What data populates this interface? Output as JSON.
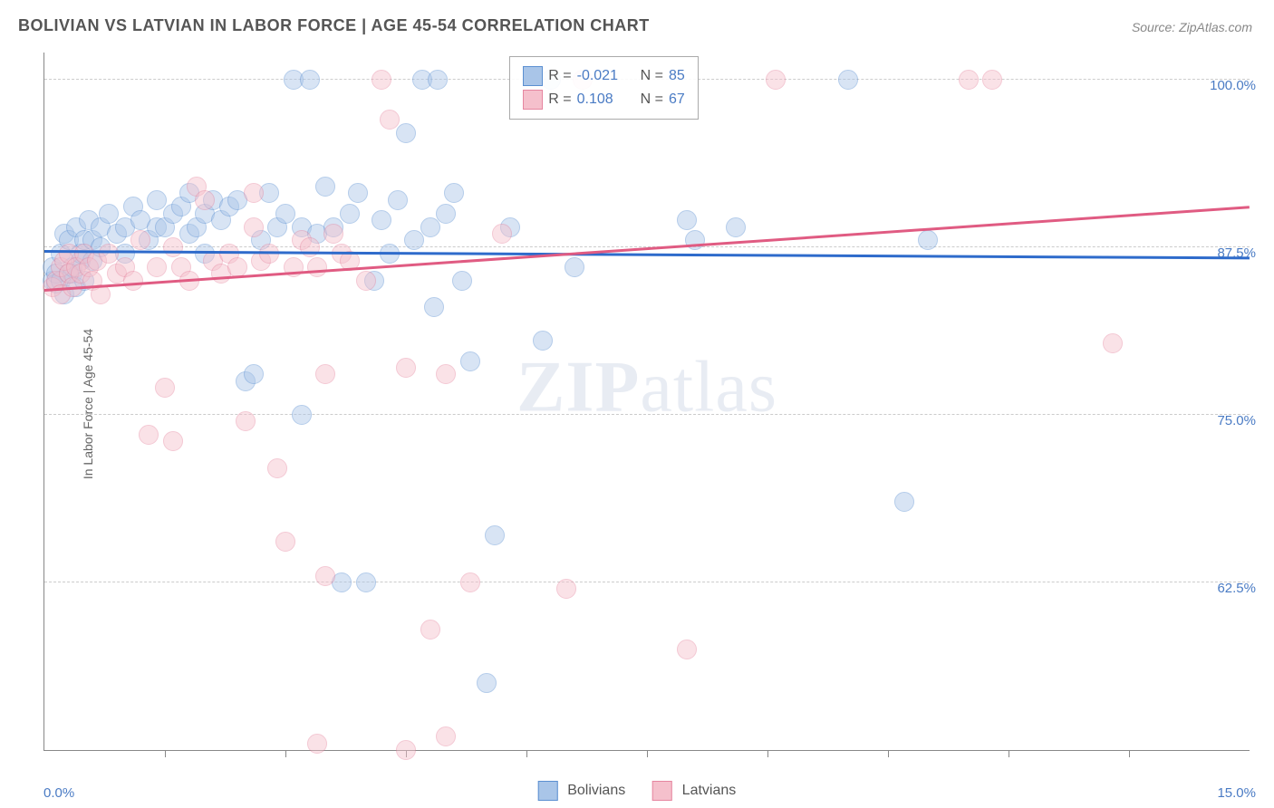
{
  "title": "BOLIVIAN VS LATVIAN IN LABOR FORCE | AGE 45-54 CORRELATION CHART",
  "source": "Source: ZipAtlas.com",
  "ylabel": "In Labor Force | Age 45-54",
  "watermark_zip": "ZIP",
  "watermark_atlas": "atlas",
  "chart": {
    "type": "scatter",
    "xlim": [
      0.0,
      15.0
    ],
    "ylim": [
      50.0,
      102.0
    ],
    "xlim_labels": [
      "0.0%",
      "15.0%"
    ],
    "y_gridlines": [
      62.5,
      75.0,
      87.5,
      100.0
    ],
    "y_grid_labels": [
      "62.5%",
      "75.0%",
      "87.5%",
      "100.0%"
    ],
    "x_ticks": [
      1.5,
      3.0,
      4.5,
      6.0,
      7.5,
      9.0,
      10.5,
      12.0,
      13.5
    ],
    "background_color": "#ffffff",
    "grid_color": "#cccccc",
    "axis_color": "#888888",
    "marker_radius": 10,
    "marker_opacity": 0.45,
    "series": [
      {
        "name": "Bolivians",
        "color_fill": "#a9c5e8",
        "color_stroke": "#5b8fd1",
        "R": "-0.021",
        "N": "85",
        "trend": {
          "x1": 0.0,
          "y1": 87.1,
          "x2": 15.0,
          "y2": 86.6,
          "color": "#2e6bcb",
          "width": 3
        },
        "points": [
          [
            0.1,
            85.0
          ],
          [
            0.1,
            86.0
          ],
          [
            0.15,
            84.8
          ],
          [
            0.15,
            85.5
          ],
          [
            0.2,
            85.0
          ],
          [
            0.2,
            87.0
          ],
          [
            0.25,
            88.5
          ],
          [
            0.25,
            84.0
          ],
          [
            0.3,
            85.5
          ],
          [
            0.3,
            88.0
          ],
          [
            0.35,
            85.5
          ],
          [
            0.35,
            86.0
          ],
          [
            0.4,
            84.5
          ],
          [
            0.4,
            89.0
          ],
          [
            0.45,
            86.5
          ],
          [
            0.45,
            87.0
          ],
          [
            0.5,
            85.0
          ],
          [
            0.5,
            88.0
          ],
          [
            0.55,
            89.5
          ],
          [
            0.6,
            88.0
          ],
          [
            0.6,
            86.5
          ],
          [
            0.7,
            87.5
          ],
          [
            0.7,
            89.0
          ],
          [
            0.8,
            90.0
          ],
          [
            0.9,
            88.5
          ],
          [
            1.0,
            89.0
          ],
          [
            1.0,
            87.0
          ],
          [
            1.1,
            90.5
          ],
          [
            1.2,
            89.5
          ],
          [
            1.3,
            88.0
          ],
          [
            1.4,
            89.0
          ],
          [
            1.4,
            91.0
          ],
          [
            1.5,
            89.0
          ],
          [
            1.6,
            90.0
          ],
          [
            1.7,
            90.5
          ],
          [
            1.8,
            88.5
          ],
          [
            1.8,
            91.5
          ],
          [
            1.9,
            89.0
          ],
          [
            2.0,
            90.0
          ],
          [
            2.0,
            87.0
          ],
          [
            2.1,
            91.0
          ],
          [
            2.2,
            89.5
          ],
          [
            2.3,
            90.5
          ],
          [
            2.4,
            91.0
          ],
          [
            2.5,
            77.5
          ],
          [
            2.6,
            78.0
          ],
          [
            2.7,
            88.0
          ],
          [
            2.8,
            91.5
          ],
          [
            2.9,
            89.0
          ],
          [
            3.0,
            90.0
          ],
          [
            3.1,
            100.0
          ],
          [
            3.2,
            89.0
          ],
          [
            3.2,
            75.0
          ],
          [
            3.3,
            100.0
          ],
          [
            3.4,
            88.5
          ],
          [
            3.5,
            92.0
          ],
          [
            3.6,
            89.0
          ],
          [
            3.7,
            62.5
          ],
          [
            3.8,
            90.0
          ],
          [
            3.9,
            91.5
          ],
          [
            4.0,
            62.5
          ],
          [
            4.1,
            85.0
          ],
          [
            4.2,
            89.5
          ],
          [
            4.3,
            87.0
          ],
          [
            4.4,
            91.0
          ],
          [
            4.5,
            96.0
          ],
          [
            4.6,
            88.0
          ],
          [
            4.7,
            100.0
          ],
          [
            4.8,
            89.0
          ],
          [
            4.85,
            83.0
          ],
          [
            4.9,
            100.0
          ],
          [
            5.0,
            90.0
          ],
          [
            5.1,
            91.5
          ],
          [
            5.2,
            85.0
          ],
          [
            5.3,
            79.0
          ],
          [
            5.5,
            55.0
          ],
          [
            5.6,
            66.0
          ],
          [
            5.8,
            89.0
          ],
          [
            6.2,
            80.5
          ],
          [
            6.3,
            100.0
          ],
          [
            6.6,
            86.0
          ],
          [
            8.0,
            89.5
          ],
          [
            8.1,
            88.0
          ],
          [
            8.6,
            89.0
          ],
          [
            10.0,
            100.0
          ],
          [
            10.7,
            68.5
          ],
          [
            11.0,
            88.0
          ]
        ]
      },
      {
        "name": "Latvians",
        "color_fill": "#f5c0cc",
        "color_stroke": "#e686a0",
        "R": "0.108",
        "N": "67",
        "trend": {
          "x1": 0.0,
          "y1": 84.2,
          "x2": 15.0,
          "y2": 90.4,
          "color": "#e05b82",
          "width": 3
        },
        "points": [
          [
            0.1,
            84.5
          ],
          [
            0.15,
            85.0
          ],
          [
            0.2,
            86.0
          ],
          [
            0.2,
            84.0
          ],
          [
            0.25,
            86.5
          ],
          [
            0.3,
            85.5
          ],
          [
            0.3,
            87.0
          ],
          [
            0.35,
            84.5
          ],
          [
            0.4,
            86.0
          ],
          [
            0.45,
            85.5
          ],
          [
            0.5,
            87.0
          ],
          [
            0.55,
            86.0
          ],
          [
            0.6,
            85.0
          ],
          [
            0.65,
            86.5
          ],
          [
            0.7,
            84.0
          ],
          [
            0.8,
            87.0
          ],
          [
            0.9,
            85.5
          ],
          [
            1.0,
            86.0
          ],
          [
            1.1,
            85.0
          ],
          [
            1.2,
            88.0
          ],
          [
            1.3,
            73.5
          ],
          [
            1.4,
            86.0
          ],
          [
            1.5,
            77.0
          ],
          [
            1.6,
            87.5
          ],
          [
            1.6,
            73.0
          ],
          [
            1.7,
            86.0
          ],
          [
            1.8,
            85.0
          ],
          [
            1.9,
            92.0
          ],
          [
            2.0,
            91.0
          ],
          [
            2.1,
            86.5
          ],
          [
            2.2,
            85.5
          ],
          [
            2.3,
            87.0
          ],
          [
            2.4,
            86.0
          ],
          [
            2.5,
            74.5
          ],
          [
            2.6,
            89.0
          ],
          [
            2.6,
            91.5
          ],
          [
            2.7,
            86.5
          ],
          [
            2.8,
            87.0
          ],
          [
            2.9,
            71.0
          ],
          [
            3.0,
            65.5
          ],
          [
            3.1,
            86.0
          ],
          [
            3.2,
            88.0
          ],
          [
            3.3,
            87.5
          ],
          [
            3.4,
            86.0
          ],
          [
            3.5,
            63.0
          ],
          [
            3.5,
            78.0
          ],
          [
            3.6,
            88.5
          ],
          [
            3.7,
            87.0
          ],
          [
            3.8,
            86.5
          ],
          [
            4.0,
            85.0
          ],
          [
            4.2,
            100.0
          ],
          [
            4.3,
            97.0
          ],
          [
            4.5,
            50.0
          ],
          [
            4.8,
            59.0
          ],
          [
            5.0,
            78.0
          ],
          [
            5.3,
            62.5
          ],
          [
            5.7,
            88.5
          ],
          [
            6.5,
            62.0
          ],
          [
            6.7,
            100.0
          ],
          [
            8.0,
            57.5
          ],
          [
            9.1,
            100.0
          ],
          [
            11.5,
            100.0
          ],
          [
            11.8,
            100.0
          ],
          [
            13.3,
            80.3
          ],
          [
            3.4,
            50.5
          ],
          [
            5.0,
            51.0
          ],
          [
            4.5,
            78.5
          ]
        ]
      }
    ]
  },
  "legend_top": {
    "R_label": "R =",
    "N_label": "N ="
  },
  "colors": {
    "axis_text": "#4a7bc4",
    "title_text": "#555555",
    "source_text": "#888888",
    "value_text": "#4a7bc4"
  }
}
